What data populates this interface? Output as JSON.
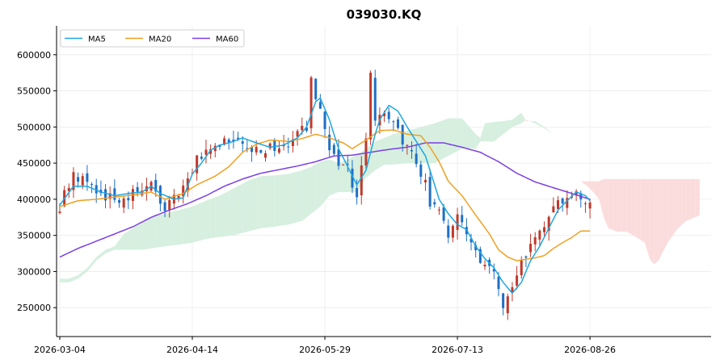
{
  "chart_data": {
    "type": "candlestick",
    "title": "039030.KQ",
    "xlabel": "",
    "ylabel": "",
    "ylim": [
      210000,
      640000
    ],
    "y_ticks": [
      250000,
      300000,
      350000,
      400000,
      450000,
      500000,
      550000,
      600000
    ],
    "x_ticks": [
      {
        "date": "2026-03-04",
        "index": 0
      },
      {
        "date": "2026-04-14",
        "index": 29
      },
      {
        "date": "2026-05-29",
        "index": 58
      },
      {
        "date": "2026-07-13",
        "index": 87
      },
      {
        "date": "2026-08-26",
        "index": 116
      }
    ],
    "x_range": [
      -0.7,
      142.5
    ],
    "grid": true,
    "legend_position": "top-left",
    "colors": {
      "up": "#c0392b",
      "down": "#1f6fc5",
      "cloud_bull": "#d6efdf",
      "cloud_bear": "#fbdcdc",
      "ma5": "#1ea7e1",
      "ma20": "#f0a020",
      "ma60": "#7b3fe4"
    },
    "series": [
      {
        "name": "MA5",
        "color": "#1ea7e1"
      },
      {
        "name": "MA20",
        "color": "#f0a020"
      },
      {
        "name": "MA60",
        "color": "#7b3fe4"
      }
    ],
    "anchors": {
      "close": [
        [
          0,
          392000
        ],
        [
          3,
          438000
        ],
        [
          6,
          422000
        ],
        [
          9,
          405000
        ],
        [
          12,
          400000
        ],
        [
          15,
          405000
        ],
        [
          18,
          412000
        ],
        [
          20,
          425000
        ],
        [
          22,
          385000
        ],
        [
          25,
          400000
        ],
        [
          28,
          420000
        ],
        [
          30,
          455000
        ],
        [
          33,
          472000
        ],
        [
          36,
          478000
        ],
        [
          39,
          490000
        ],
        [
          42,
          465000
        ],
        [
          45,
          470000
        ],
        [
          48,
          472000
        ],
        [
          51,
          480000
        ],
        [
          54,
          500000
        ],
        [
          55,
          560000
        ],
        [
          57,
          520000
        ],
        [
          59,
          460000
        ],
        [
          61,
          450000
        ],
        [
          63,
          440000
        ],
        [
          65,
          405000
        ],
        [
          66,
          440000
        ],
        [
          67,
          480000
        ],
        [
          68,
          575000
        ],
        [
          69,
          500000
        ],
        [
          71,
          525000
        ],
        [
          73,
          500000
        ],
        [
          75,
          480000
        ],
        [
          77,
          470000
        ],
        [
          78,
          440000
        ],
        [
          80,
          430000
        ],
        [
          81,
          395000
        ],
        [
          83,
          385000
        ],
        [
          85,
          355000
        ],
        [
          87,
          372000
        ],
        [
          89,
          360000
        ],
        [
          91,
          322000
        ],
        [
          93,
          312000
        ],
        [
          94,
          310000
        ],
        [
          96,
          275000
        ],
        [
          97,
          250000
        ],
        [
          98,
          258000
        ],
        [
          100,
          295000
        ],
        [
          102,
          325000
        ],
        [
          104,
          345000
        ],
        [
          106,
          370000
        ],
        [
          108,
          390000
        ],
        [
          110,
          400000
        ],
        [
          112,
          410000
        ],
        [
          114,
          395000
        ],
        [
          116,
          400000
        ]
      ],
      "ma5": [
        [
          0,
          392000
        ],
        [
          3,
          418000
        ],
        [
          6,
          418000
        ],
        [
          9,
          410000
        ],
        [
          12,
          405000
        ],
        [
          15,
          408000
        ],
        [
          18,
          410000
        ],
        [
          20,
          418000
        ],
        [
          22,
          408000
        ],
        [
          25,
          400000
        ],
        [
          27,
          402000
        ],
        [
          29,
          435000
        ],
        [
          31,
          450000
        ],
        [
          33,
          468000
        ],
        [
          35,
          475000
        ],
        [
          37,
          478000
        ],
        [
          40,
          485000
        ],
        [
          43,
          478000
        ],
        [
          46,
          472000
        ],
        [
          49,
          475000
        ],
        [
          52,
          485000
        ],
        [
          54,
          500000
        ],
        [
          56,
          535000
        ],
        [
          57,
          540000
        ],
        [
          59,
          510000
        ],
        [
          61,
          470000
        ],
        [
          63,
          445000
        ],
        [
          65,
          420000
        ],
        [
          67,
          440000
        ],
        [
          69,
          490000
        ],
        [
          70,
          510000
        ],
        [
          72,
          530000
        ],
        [
          74,
          522000
        ],
        [
          76,
          500000
        ],
        [
          78,
          480000
        ],
        [
          80,
          460000
        ],
        [
          81,
          440000
        ],
        [
          83,
          400000
        ],
        [
          85,
          380000
        ],
        [
          87,
          365000
        ],
        [
          89,
          358000
        ],
        [
          91,
          335000
        ],
        [
          93,
          318000
        ],
        [
          95,
          305000
        ],
        [
          97,
          285000
        ],
        [
          99,
          270000
        ],
        [
          101,
          285000
        ],
        [
          103,
          315000
        ],
        [
          105,
          335000
        ],
        [
          107,
          360000
        ],
        [
          109,
          385000
        ],
        [
          111,
          398000
        ],
        [
          113,
          410000
        ],
        [
          115,
          405000
        ],
        [
          116,
          398000
        ]
      ],
      "ma20": [
        [
          0,
          390000
        ],
        [
          4,
          398000
        ],
        [
          8,
          400000
        ],
        [
          12,
          403000
        ],
        [
          16,
          406000
        ],
        [
          20,
          410000
        ],
        [
          23,
          400000
        ],
        [
          27,
          408000
        ],
        [
          30,
          420000
        ],
        [
          34,
          432000
        ],
        [
          37,
          445000
        ],
        [
          40,
          465000
        ],
        [
          43,
          476000
        ],
        [
          46,
          482000
        ],
        [
          50,
          480000
        ],
        [
          53,
          484000
        ],
        [
          56,
          490000
        ],
        [
          59,
          485000
        ],
        [
          62,
          478000
        ],
        [
          64,
          470000
        ],
        [
          67,
          482000
        ],
        [
          70,
          495000
        ],
        [
          73,
          496000
        ],
        [
          76,
          490000
        ],
        [
          79,
          488000
        ],
        [
          81,
          472000
        ],
        [
          83,
          452000
        ],
        [
          85,
          425000
        ],
        [
          88,
          405000
        ],
        [
          91,
          378000
        ],
        [
          94,
          352000
        ],
        [
          96,
          330000
        ],
        [
          98,
          320000
        ],
        [
          100,
          315000
        ],
        [
          102,
          317000
        ],
        [
          104,
          319000
        ],
        [
          106,
          322000
        ],
        [
          108,
          332000
        ],
        [
          110,
          340000
        ],
        [
          112,
          347000
        ],
        [
          114,
          356000
        ],
        [
          116,
          356000
        ]
      ],
      "ma60": [
        [
          0,
          320000
        ],
        [
          4,
          332000
        ],
        [
          8,
          342000
        ],
        [
          12,
          352000
        ],
        [
          16,
          362000
        ],
        [
          20,
          375000
        ],
        [
          24,
          385000
        ],
        [
          28,
          394000
        ],
        [
          32,
          405000
        ],
        [
          36,
          418000
        ],
        [
          40,
          428000
        ],
        [
          44,
          436000
        ],
        [
          48,
          441000
        ],
        [
          52,
          446000
        ],
        [
          56,
          452000
        ],
        [
          60,
          460000
        ],
        [
          64,
          461000
        ],
        [
          68,
          465000
        ],
        [
          72,
          469000
        ],
        [
          76,
          472000
        ],
        [
          80,
          478000
        ],
        [
          84,
          478000
        ],
        [
          88,
          472000
        ],
        [
          92,
          465000
        ],
        [
          96,
          452000
        ],
        [
          100,
          436000
        ],
        [
          104,
          424000
        ],
        [
          108,
          416000
        ],
        [
          112,
          408000
        ],
        [
          116,
          400000
        ]
      ],
      "cloud_a": [
        [
          0,
          290000
        ],
        [
          2,
          290000
        ],
        [
          4,
          295000
        ],
        [
          6,
          305000
        ],
        [
          8,
          320000
        ],
        [
          10,
          330000
        ],
        [
          12,
          335000
        ],
        [
          14,
          352000
        ],
        [
          16,
          360000
        ],
        [
          18,
          368000
        ],
        [
          20,
          375000
        ],
        [
          23,
          380000
        ],
        [
          26,
          385000
        ],
        [
          29,
          390000
        ],
        [
          32,
          398000
        ],
        [
          35,
          405000
        ],
        [
          38,
          415000
        ],
        [
          41,
          425000
        ],
        [
          44,
          432000
        ],
        [
          47,
          433000
        ],
        [
          50,
          435000
        ],
        [
          53,
          440000
        ],
        [
          55,
          445000
        ],
        [
          57,
          452000
        ],
        [
          59,
          455000
        ],
        [
          61,
          450000
        ],
        [
          63,
          455000
        ],
        [
          65,
          462000
        ],
        [
          67,
          470000
        ],
        [
          69,
          480000
        ],
        [
          71,
          485000
        ],
        [
          73,
          490000
        ],
        [
          76,
          495000
        ],
        [
          79,
          500000
        ],
        [
          82,
          505000
        ],
        [
          85,
          512000
        ],
        [
          88,
          512000
        ],
        [
          91,
          490000
        ],
        [
          92,
          485000
        ],
        [
          93,
          505000
        ],
        [
          95,
          507000
        ],
        [
          97,
          508000
        ],
        [
          99,
          510000
        ],
        [
          101,
          520000
        ],
        [
          102,
          508000
        ],
        [
          104,
          508000
        ],
        [
          106,
          500000
        ],
        [
          108,
          490000
        ],
        [
          110,
          470000
        ],
        [
          112,
          440000
        ],
        [
          114,
          425000
        ],
        [
          116,
          415000
        ],
        [
          118,
          400000
        ],
        [
          119,
          375000
        ],
        [
          120,
          360000
        ],
        [
          122,
          355000
        ],
        [
          124,
          355000
        ],
        [
          126,
          348000
        ],
        [
          128,
          340000
        ],
        [
          129,
          318000
        ],
        [
          130,
          310000
        ],
        [
          131,
          315000
        ],
        [
          132,
          328000
        ],
        [
          133,
          340000
        ],
        [
          135,
          358000
        ],
        [
          137,
          370000
        ],
        [
          139,
          375000
        ],
        [
          140,
          378000
        ]
      ],
      "cloud_b": [
        [
          0,
          285000
        ],
        [
          2,
          285000
        ],
        [
          4,
          290000
        ],
        [
          6,
          300000
        ],
        [
          8,
          315000
        ],
        [
          10,
          325000
        ],
        [
          12,
          330000
        ],
        [
          14,
          330000
        ],
        [
          16,
          330000
        ],
        [
          18,
          330000
        ],
        [
          20,
          332000
        ],
        [
          23,
          335000
        ],
        [
          26,
          337000
        ],
        [
          29,
          340000
        ],
        [
          32,
          345000
        ],
        [
          35,
          348000
        ],
        [
          38,
          350000
        ],
        [
          41,
          355000
        ],
        [
          44,
          360000
        ],
        [
          47,
          362000
        ],
        [
          50,
          365000
        ],
        [
          53,
          370000
        ],
        [
          55,
          380000
        ],
        [
          57,
          390000
        ],
        [
          59,
          405000
        ],
        [
          61,
          410000
        ],
        [
          63,
          410000
        ],
        [
          65,
          410000
        ],
        [
          67,
          430000
        ],
        [
          69,
          440000
        ],
        [
          71,
          448000
        ],
        [
          73,
          448000
        ],
        [
          76,
          450000
        ],
        [
          79,
          450000
        ],
        [
          82,
          450000
        ],
        [
          85,
          460000
        ],
        [
          88,
          470000
        ],
        [
          91,
          470000
        ],
        [
          92,
          480000
        ],
        [
          93,
          480000
        ],
        [
          95,
          480000
        ],
        [
          97,
          490000
        ],
        [
          99,
          500000
        ],
        [
          101,
          505000
        ],
        [
          102,
          510000
        ],
        [
          104,
          505000
        ],
        [
          106,
          498000
        ],
        [
          108,
          490000
        ],
        [
          110,
          470000
        ],
        [
          112,
          440000
        ],
        [
          114,
          425000
        ],
        [
          116,
          425000
        ],
        [
          118,
          425000
        ],
        [
          119,
          428000
        ],
        [
          120,
          428000
        ],
        [
          122,
          428000
        ],
        [
          124,
          428000
        ],
        [
          126,
          428000
        ],
        [
          128,
          428000
        ],
        [
          129,
          428000
        ],
        [
          130,
          428000
        ],
        [
          131,
          428000
        ],
        [
          132,
          428000
        ],
        [
          133,
          428000
        ],
        [
          135,
          428000
        ],
        [
          137,
          428000
        ],
        [
          139,
          428000
        ],
        [
          140,
          428000
        ]
      ]
    }
  }
}
